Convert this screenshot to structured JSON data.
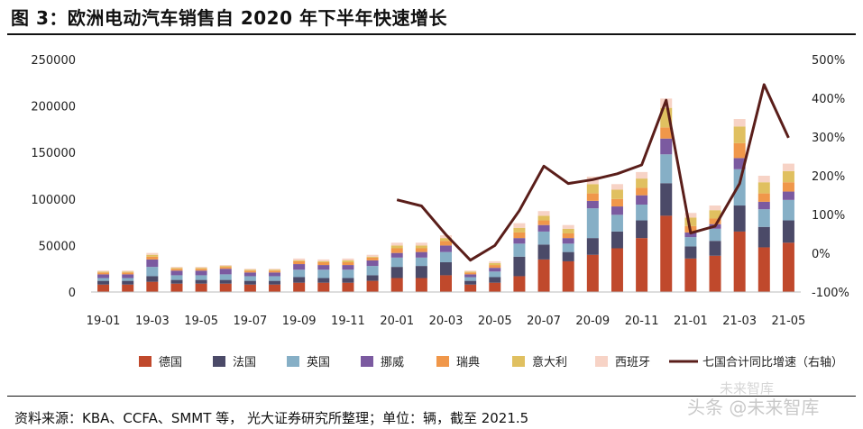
{
  "title": "图 3：欧洲电动汽车销售自 2020 年下半年快速增长",
  "source_note": "资料来源：KBA、CCFA、SMMT 等，  光大证券研究所整理；单位：辆，截至 2021.5",
  "watermark": "头条 @未来智库",
  "watermark_small": "未来智库",
  "chart_data": {
    "type": "bar",
    "stacked": true,
    "x": [
      "19-01",
      "19-02",
      "19-03",
      "19-04",
      "19-05",
      "19-06",
      "19-07",
      "19-08",
      "19-09",
      "19-10",
      "19-11",
      "19-12",
      "20-01",
      "20-02",
      "20-03",
      "20-04",
      "20-05",
      "20-06",
      "20-07",
      "20-08",
      "20-09",
      "20-10",
      "20-11",
      "20-12",
      "21-01",
      "21-02",
      "21-03",
      "21-04",
      "21-05"
    ],
    "x_tick_labels": [
      "19-01",
      "19-03",
      "19-05",
      "19-07",
      "19-09",
      "19-11",
      "20-01",
      "20-03",
      "20-05",
      "20-07",
      "20-09",
      "20-11",
      "21-01",
      "21-03",
      "21-05"
    ],
    "ylim": [
      0,
      250000
    ],
    "y_ticks": [
      0,
      50000,
      100000,
      150000,
      200000,
      250000
    ],
    "y2lim": [
      -100,
      500
    ],
    "y2_ticks": [
      "-100%",
      "0%",
      "100%",
      "200%",
      "300%",
      "400%",
      "500%"
    ],
    "y2_tick_values": [
      -100,
      0,
      100,
      200,
      300,
      400,
      500
    ],
    "series": [
      {
        "name": "德国",
        "color": "#c0492c",
        "values": [
          8000,
          8000,
          11000,
          9000,
          9000,
          9000,
          8000,
          8000,
          10000,
          10000,
          10000,
          12000,
          15000,
          15000,
          18000,
          8000,
          10000,
          17000,
          35000,
          33000,
          40000,
          47000,
          58000,
          82000,
          36000,
          39000,
          65000,
          48000,
          53000
        ]
      },
      {
        "name": "法国",
        "color": "#4b4a68",
        "values": [
          4000,
          4000,
          6000,
          4000,
          4000,
          4000,
          4000,
          4000,
          6000,
          5000,
          5000,
          6000,
          12000,
          13000,
          14000,
          4000,
          6000,
          21000,
          16000,
          10000,
          18000,
          18000,
          19000,
          35000,
          13000,
          16000,
          28000,
          22000,
          24000
        ]
      },
      {
        "name": "英国",
        "color": "#86afc6",
        "values": [
          3000,
          3000,
          10000,
          5000,
          5000,
          6000,
          5000,
          5000,
          8000,
          9000,
          9000,
          10000,
          10000,
          9000,
          11000,
          4000,
          6000,
          14000,
          14000,
          9000,
          32000,
          18000,
          17000,
          31000,
          10000,
          13000,
          39000,
          19000,
          22000
        ]
      },
      {
        "name": "挪威",
        "color": "#7b5aa0",
        "values": [
          4000,
          4000,
          8000,
          5000,
          5000,
          6000,
          4000,
          4000,
          6000,
          5000,
          5000,
          6000,
          5000,
          6000,
          7000,
          3000,
          4000,
          6000,
          7000,
          6000,
          8000,
          9000,
          10000,
          17000,
          5000,
          5000,
          12000,
          8000,
          9000
        ]
      },
      {
        "name": "瑞典",
        "color": "#f0974a",
        "values": [
          2000,
          2000,
          3000,
          2000,
          2000,
          2000,
          2000,
          2000,
          3000,
          3000,
          3000,
          3000,
          5000,
          4000,
          5000,
          2000,
          3000,
          6000,
          5000,
          5000,
          8000,
          8000,
          8000,
          12000,
          7000,
          6000,
          16000,
          9000,
          10000
        ]
      },
      {
        "name": "意大利",
        "color": "#e0c060",
        "values": [
          1000,
          1000,
          2000,
          1000,
          1000,
          1000,
          1000,
          1000,
          1000,
          1000,
          2000,
          1000,
          3000,
          3000,
          3000,
          1000,
          2000,
          5000,
          5000,
          5000,
          10000,
          10000,
          10000,
          21000,
          9000,
          9000,
          18000,
          12000,
          12000
        ]
      },
      {
        "name": "西班牙",
        "color": "#f7d3c6",
        "values": [
          1000,
          1000,
          2000,
          1000,
          1000,
          1000,
          1000,
          1000,
          2000,
          2000,
          2000,
          2000,
          3000,
          3000,
          3000,
          1000,
          2000,
          5000,
          5000,
          4000,
          8000,
          6000,
          7000,
          10000,
          5000,
          5000,
          8000,
          7000,
          8000
        ]
      }
    ],
    "line": {
      "name": "七国合计同比增速（右轴）",
      "color": "#5a1e1a",
      "axis": "right",
      "start_index": 12,
      "values": [
        138,
        122,
        48,
        -18,
        20,
        110,
        225,
        180,
        190,
        205,
        228,
        395,
        52,
        70,
        180,
        435,
        298
      ]
    },
    "legend_position": "bottom"
  }
}
